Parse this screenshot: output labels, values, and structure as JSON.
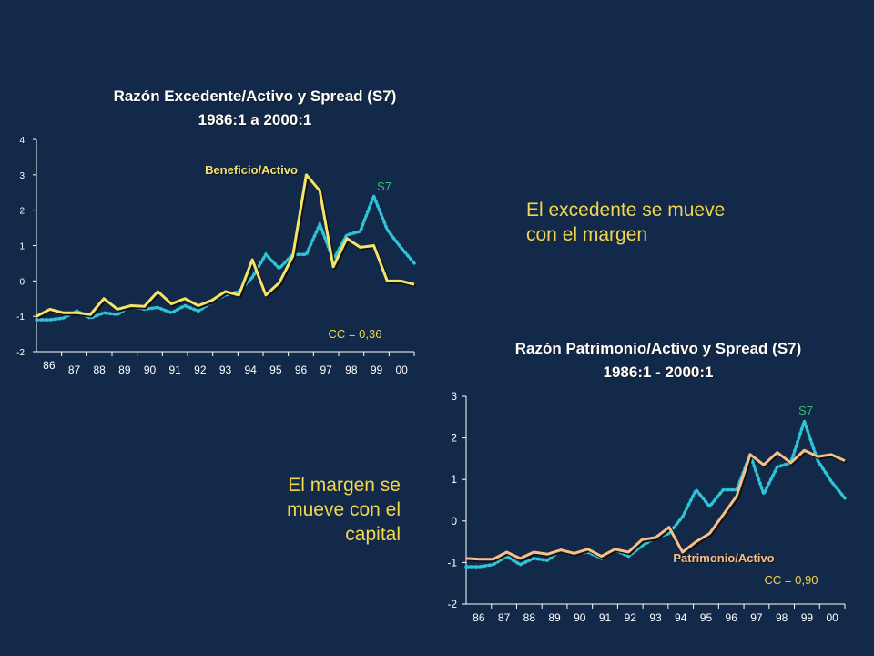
{
  "side_texts": {
    "right_top_line1": "El excedente se mueve",
    "right_top_line2": "con el margen",
    "left_bottom_line1": "El margen se",
    "left_bottom_line2": "mueve con el",
    "left_bottom_line3": "capital"
  },
  "colors": {
    "background": "#13294a",
    "ratio_line_chart1": "#f5e46a",
    "ratio_line_chart2": "#f5c08a",
    "spread_line": "#2ec4d6",
    "s7_label": "#3cb878",
    "cc_label": "#f2d64b"
  },
  "chart_data": [
    {
      "type": "line",
      "title": "Razón Excedente/Activo y Spread (S7)",
      "subtitle": "1986:1 a 2000:1",
      "ylim": [
        -2,
        4
      ],
      "yticks": [
        "4",
        "3",
        "2",
        "1",
        "0",
        "-1",
        "-2"
      ],
      "xticks": [
        "86",
        "87",
        "88",
        "89",
        "90",
        "91",
        "92",
        "93",
        "94",
        "95",
        "96",
        "97",
        "98",
        "99",
        "00"
      ],
      "annotations": {
        "ratio_label": "Beneficio/Activo",
        "spread_label": "S7",
        "cc": "CC = 0,36"
      },
      "series": [
        {
          "name": "Beneficio/Activo",
          "values": [
            -1.0,
            -0.8,
            -0.9,
            -0.9,
            -0.95,
            -0.5,
            -0.8,
            -0.7,
            -0.72,
            -0.3,
            -0.65,
            -0.5,
            -0.7,
            -0.55,
            -0.3,
            -0.4,
            0.6,
            -0.4,
            -0.05,
            0.7,
            3.0,
            2.55,
            0.4,
            1.2,
            0.95,
            1.0,
            0.0,
            0.0,
            -0.1
          ]
        },
        {
          "name": "S7",
          "values": [
            -1.1,
            -1.1,
            -1.05,
            -0.85,
            -1.05,
            -0.9,
            -0.95,
            -0.7,
            -0.8,
            -0.75,
            -0.9,
            -0.7,
            -0.85,
            -0.6,
            -0.4,
            -0.3,
            0.1,
            0.75,
            0.35,
            0.75,
            0.75,
            1.6,
            0.6,
            1.3,
            1.4,
            2.4,
            1.45,
            0.95,
            0.5
          ]
        }
      ]
    },
    {
      "type": "line",
      "title": "Razón Patrimonio/Activo y Spread (S7)",
      "subtitle": "1986:1 - 2000:1",
      "ylim": [
        -2,
        3
      ],
      "yticks": [
        "3",
        "2",
        "1",
        "0",
        "-1",
        "-2"
      ],
      "xticks": [
        "86",
        "87",
        "88",
        "89",
        "90",
        "91",
        "92",
        "93",
        "94",
        "95",
        "96",
        "97",
        "98",
        "99",
        "00"
      ],
      "annotations": {
        "ratio_label": "Patrimonio/Activo",
        "spread_label": "S7",
        "cc": "CC = 0,90"
      },
      "series": [
        {
          "name": "Patrimonio/Activo",
          "values": [
            -0.9,
            -0.92,
            -0.92,
            -0.75,
            -0.9,
            -0.75,
            -0.8,
            -0.7,
            -0.78,
            -0.68,
            -0.85,
            -0.68,
            -0.75,
            -0.45,
            -0.4,
            -0.15,
            -0.75,
            -0.5,
            -0.3,
            0.15,
            0.6,
            1.6,
            1.35,
            1.65,
            1.4,
            1.7,
            1.55,
            1.6,
            1.45
          ]
        },
        {
          "name": "S7",
          "values": [
            -1.1,
            -1.1,
            -1.05,
            -0.85,
            -1.05,
            -0.9,
            -0.95,
            -0.7,
            -0.8,
            -0.75,
            -0.9,
            -0.7,
            -0.85,
            -0.6,
            -0.4,
            -0.3,
            0.1,
            0.75,
            0.35,
            0.75,
            0.75,
            1.6,
            0.65,
            1.3,
            1.4,
            2.4,
            1.45,
            0.95,
            0.55
          ]
        }
      ]
    }
  ]
}
